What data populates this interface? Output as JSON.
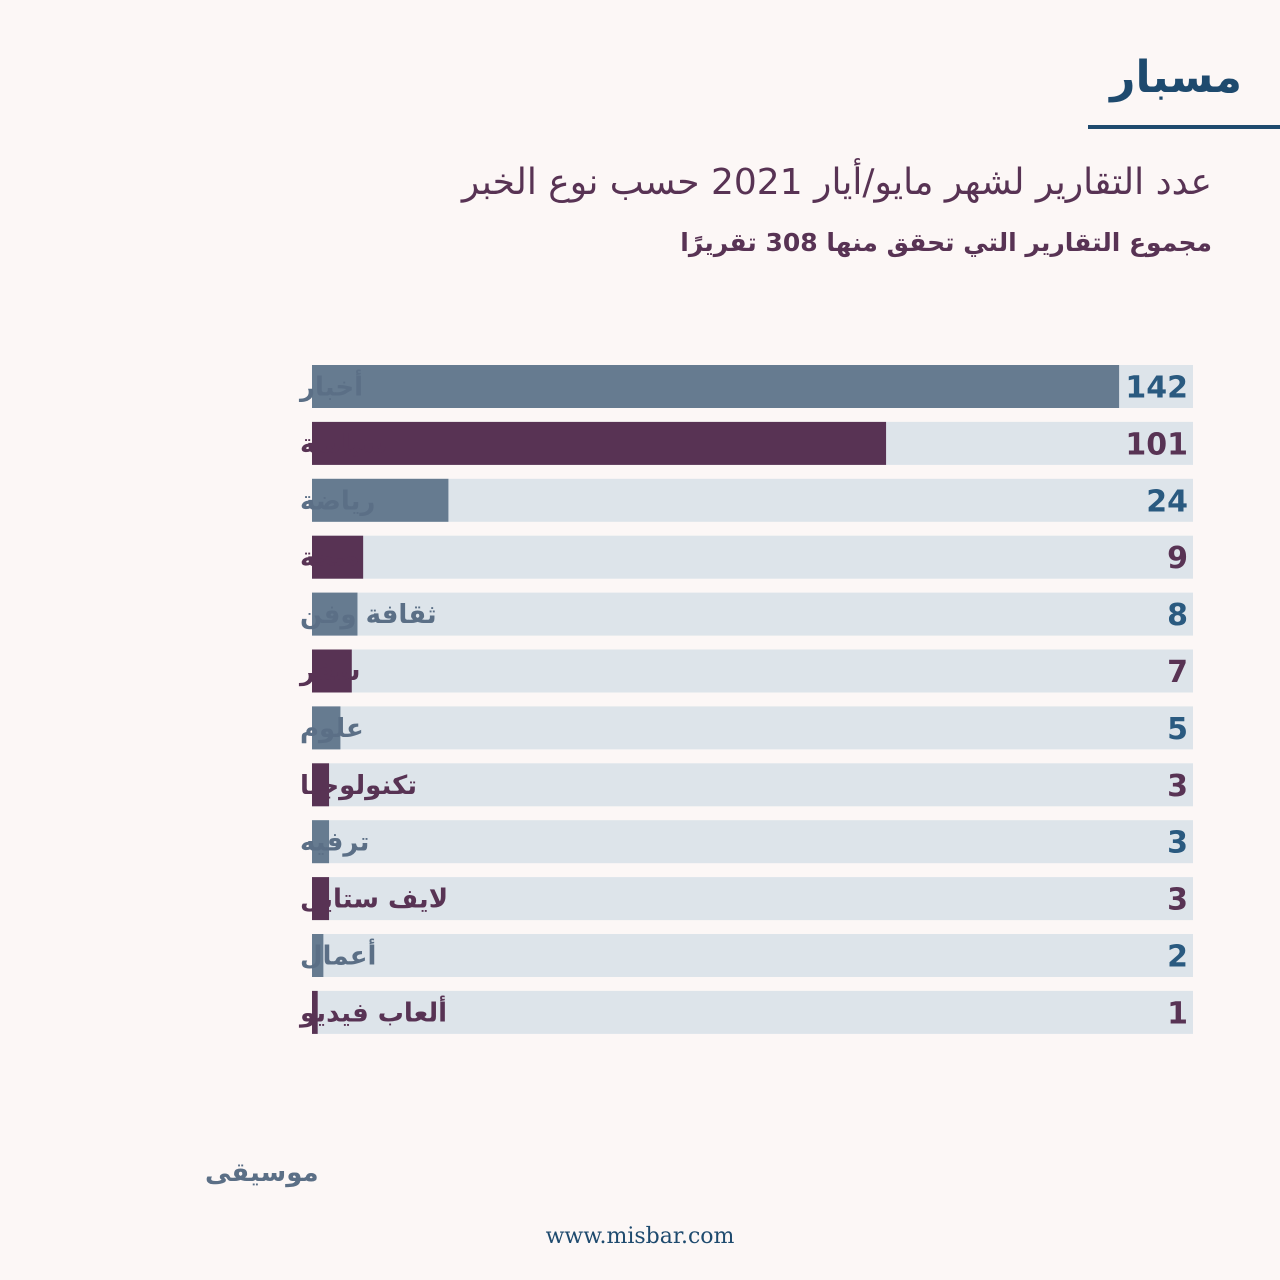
{
  "brand": {
    "logo_text": "مسبار",
    "url": "www.misbar.com",
    "brand_color": "#1e4a6e"
  },
  "chart_data": {
    "type": "bar",
    "orientation": "horizontal",
    "title": "عدد التقارير لشهر مايو/أيار 2021 حسب نوع الخبر",
    "subtitle": "مجموع التقارير التي تحقق منها 308 تقريرًا",
    "categories": [
      "أخبار",
      "سياسة",
      "رياضة",
      "صحة",
      "ثقافة وفن",
      "سفر",
      "علوم",
      "تكنولوجيا",
      "ترفيه",
      "لايف ستايل",
      "أعمال",
      "ألعاب فيديو"
    ],
    "values": [
      142,
      101,
      24,
      9,
      8,
      7,
      5,
      3,
      3,
      3,
      2,
      1
    ],
    "bar_colors": [
      "#667b90",
      "#583354"
    ],
    "label_colors": [
      "#5b6f86",
      "#583354"
    ],
    "value_colors": [
      "#2a5a80",
      "#583354"
    ],
    "track_color": "#dde4ea",
    "extra_label": "موسيقى",
    "xlabel": "",
    "ylabel": "",
    "xlim": [
      0,
      155
    ],
    "grid": false,
    "legend": "none"
  }
}
